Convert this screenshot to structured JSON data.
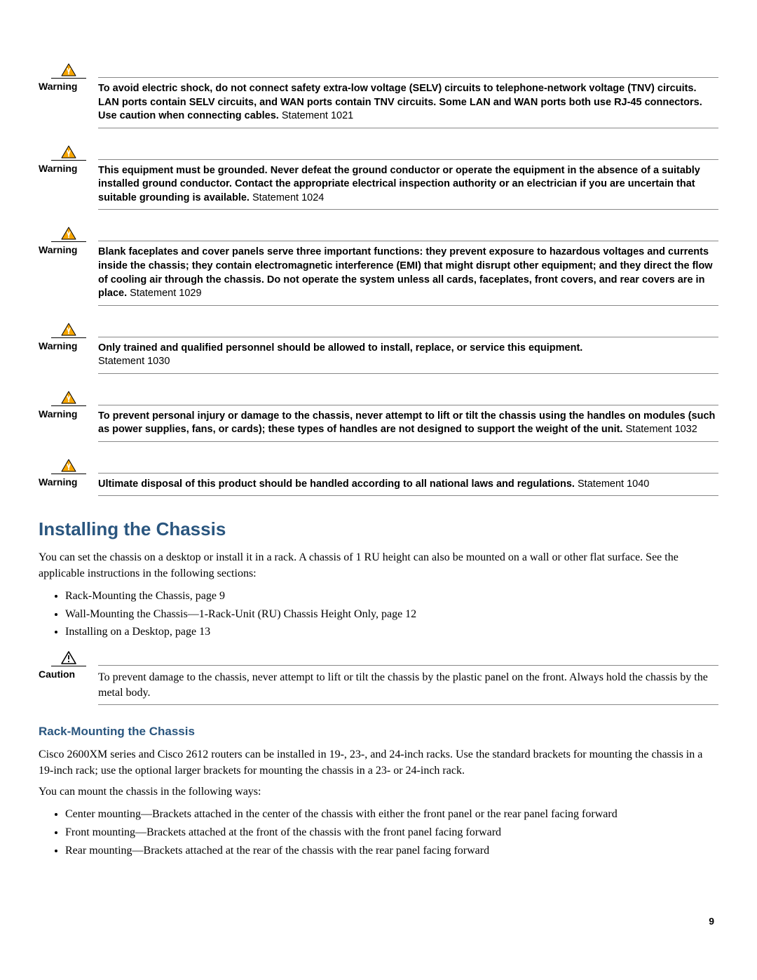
{
  "colors": {
    "heading": "#2a567f",
    "warning_icon_fill": "#f7a600",
    "warning_icon_stroke": "#000000",
    "caution_icon_stroke": "#000000",
    "rule": "#888888",
    "text": "#000000",
    "background": "#ffffff"
  },
  "typography": {
    "warning_label_font": "Arial",
    "warning_label_size_pt": 10.5,
    "warning_label_weight": "bold",
    "warning_body_font": "Arial",
    "warning_body_size_pt": 11,
    "body_font": "Times New Roman",
    "body_size_pt": 12,
    "h1_font": "Arial",
    "h1_size_pt": 20,
    "h1_weight": "bold",
    "h2_font": "Arial",
    "h2_size_pt": 13,
    "h2_weight": "bold"
  },
  "labels": {
    "warning": "Warning",
    "caution": "Caution"
  },
  "warnings": [
    {
      "bold": "To avoid electric shock, do not connect safety extra-low voltage (SELV) circuits to telephone-network voltage (TNV) circuits. LAN ports contain SELV circuits, and WAN ports contain TNV circuits. Some LAN and WAN ports both use RJ-45 connectors. Use caution when connecting cables.",
      "stmt": " Statement 1021"
    },
    {
      "bold": "This equipment must be grounded. Never defeat the ground conductor or operate the equipment in the absence of a suitably installed ground conductor. Contact the appropriate electrical inspection authority or an electrician if you are uncertain that suitable grounding is available.",
      "stmt": " Statement 1024"
    },
    {
      "bold": "Blank faceplates and cover panels serve three important functions: they prevent exposure to hazardous voltages and currents inside the chassis; they contain electromagnetic interference (EMI) that might disrupt other equipment; and they direct the flow of cooling air through the chassis. Do not operate the system unless all cards, faceplates, front covers, and rear covers are in place.",
      "stmt": " Statement 1029"
    },
    {
      "bold": "Only trained and qualified personnel should be allowed to install, replace, or service this equipment.",
      "stmt": " Statement 1030",
      "stmt_newline": true
    },
    {
      "bold": "To prevent personal injury or damage to the chassis, never attempt to lift or tilt the chassis using the handles on modules (such as power supplies, fans, or cards); these types of handles are not designed to support the weight of the unit.",
      "stmt": " Statement 1032"
    },
    {
      "bold": "Ultimate disposal of this product should be handled according to all national laws and regulations.",
      "stmt": " Statement 1040"
    }
  ],
  "section": {
    "title": "Installing the Chassis",
    "intro": "You can set the chassis on a desktop or install it in a rack. A chassis of 1 RU height can also be mounted on a wall or other flat surface. See the applicable instructions in the following sections:",
    "links": [
      "Rack-Mounting the Chassis, page 9",
      "Wall-Mounting the Chassis—1-Rack-Unit (RU) Chassis Height Only, page 12",
      "Installing on a Desktop, page 13"
    ]
  },
  "caution": {
    "text": "To prevent damage to the chassis, never attempt to lift or tilt the chassis by the plastic panel on the front. Always hold the chassis by the metal body."
  },
  "subsection": {
    "title": "Rack-Mounting the Chassis",
    "p1": "Cisco 2600XM series and Cisco 2612 routers can be installed in 19-, 23-, and 24-inch racks. Use the standard brackets for mounting the chassis in a 19-inch rack; use the optional larger brackets for mounting the chassis in a 23- or 24-inch rack.",
    "p2": "You can mount the chassis in the following ways:",
    "bullets": [
      "Center mounting—Brackets attached in the center of the chassis with either the front panel or the rear panel facing forward",
      "Front mounting—Brackets attached at the front of the chassis with the front panel facing forward",
      "Rear mounting—Brackets attached at the rear of the chassis with the rear panel facing forward"
    ]
  },
  "page_number": "9"
}
